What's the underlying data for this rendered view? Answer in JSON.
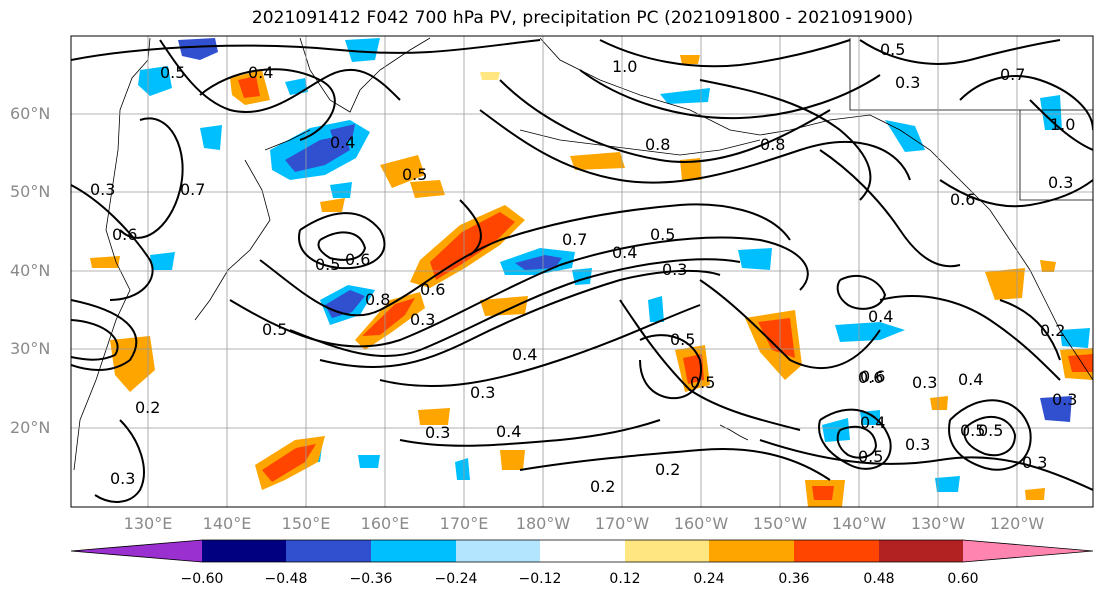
{
  "title": "2021091412 F042 700 hPa PV, precipitation PC (2021091800 - 2021091900)",
  "lat_labels": [
    "60°N",
    "50°N",
    "40°N",
    "30°N",
    "20°N"
  ],
  "lon_labels": [
    "130°E",
    "140°E",
    "150°E",
    "160°E",
    "170°E",
    "180°W",
    "170°W",
    "160°W",
    "150°W",
    "140°W",
    "130°W",
    "120°W"
  ],
  "colorbar": {
    "ticks": [
      "−0.60",
      "−0.48",
      "−0.36",
      "−0.24",
      "−0.12",
      "0.12",
      "0.24",
      "0.36",
      "0.48",
      "0.60"
    ],
    "colors": [
      "#9b30d0",
      "#000080",
      "#3050d0",
      "#00bfff",
      "#b3e5ff",
      "#ffffff",
      "#ffe680",
      "#ffa500",
      "#ff4500",
      "#b22222",
      "#ff85b0"
    ]
  },
  "contour_labels": [
    "0.5",
    "0.4",
    "0.7",
    "0.3",
    "1.0",
    "0.4",
    "0.5",
    "0.6",
    "0.8",
    "0.7",
    "0.8",
    "0.5",
    "0.6",
    "0.5",
    "0.7",
    "0.4",
    "0.5",
    "0.3",
    "0.6",
    "0.5",
    "0.8",
    "0.6",
    "0.3",
    "0.4",
    "0.3",
    "0.5",
    "0.5",
    "0.6",
    "0.4",
    "0.3",
    "0.2",
    "0.2",
    "0.3",
    "0.2",
    "0.3",
    "0.4",
    "0.6",
    "0.5",
    "0.3",
    "0.4",
    "0.5",
    "0.3",
    "0.3",
    "0.4",
    "0.5",
    "0.3",
    "0.2",
    "0.3",
    "1.0"
  ]
}
